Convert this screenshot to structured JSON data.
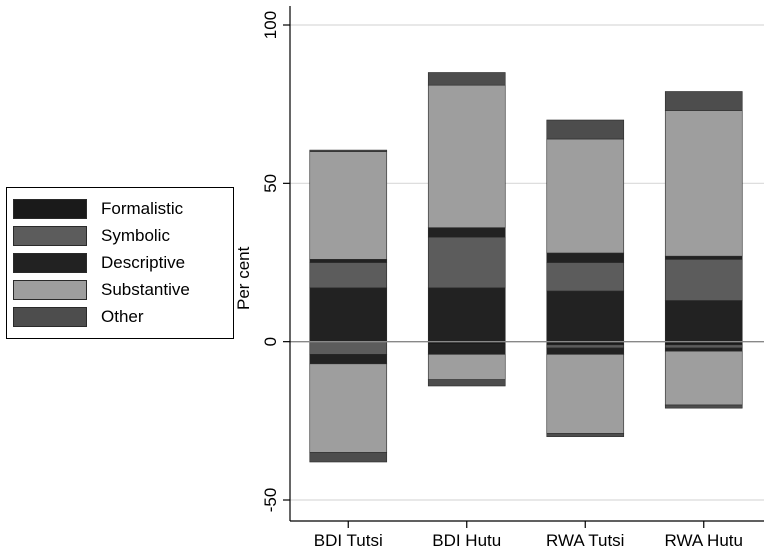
{
  "chart_data": {
    "type": "bar",
    "stacked": "diverging",
    "title": "",
    "xlabel": "",
    "ylabel": "Per cent",
    "ylim": [
      -55,
      100
    ],
    "yticks": [
      100,
      50,
      0,
      -50
    ],
    "ytick_labels": [
      "100",
      "50",
      "0",
      "-50"
    ],
    "grid": true,
    "categories": [
      "BDI Tutsi",
      "BDI Hutu",
      "RWA Tutsi",
      "RWA Hutu"
    ],
    "series": [
      {
        "name": "Formalistic",
        "color": "#1a1a1a",
        "positive": [
          0,
          0,
          0,
          0
        ],
        "negative": [
          0,
          1,
          1,
          1
        ]
      },
      {
        "name": "Symbolic",
        "color": "#5c5c5c",
        "positive": [
          0,
          0,
          0,
          0
        ],
        "negative": [
          4,
          0,
          1,
          1
        ]
      },
      {
        "name": "Descriptive",
        "color": "#222222",
        "positive": [
          17,
          17,
          16,
          13
        ],
        "negative": [
          3,
          3,
          2,
          1
        ]
      },
      {
        "name": "Substantive",
        "color": "#9e9e9e",
        "positive": [
          0,
          0,
          0,
          0
        ],
        "negative": [
          28,
          8,
          25,
          17
        ]
      },
      {
        "name": "Other",
        "color": "#4d4d4d",
        "positive": [
          0,
          0,
          0,
          0
        ],
        "negative": [
          3,
          2,
          1,
          1
        ]
      },
      {
        "name": "Symbolic",
        "color": "#5c5c5c",
        "positive": [
          8,
          16,
          9,
          13
        ],
        "negative": [
          0,
          0,
          0,
          0
        ]
      },
      {
        "name": "Descriptive",
        "color": "#222222",
        "positive": [
          1,
          3,
          3,
          1
        ],
        "negative": [
          0,
          0,
          0,
          0
        ]
      },
      {
        "name": "Substantive",
        "color": "#9e9e9e",
        "positive": [
          34,
          45,
          36,
          46
        ],
        "negative": [
          0,
          0,
          0,
          0
        ]
      },
      {
        "name": "Other",
        "color": "#4d4d4d",
        "positive": [
          0.5,
          4,
          6,
          6
        ],
        "negative": [
          0,
          0,
          0,
          0
        ]
      }
    ],
    "legend": {
      "position": "left",
      "entries": [
        {
          "label": "Formalistic",
          "color": "#1a1a1a"
        },
        {
          "label": "Symbolic",
          "color": "#5c5c5c"
        },
        {
          "label": "Descriptive",
          "color": "#222222"
        },
        {
          "label": "Substantive",
          "color": "#9e9e9e"
        },
        {
          "label": "Other",
          "color": "#4d4d4d"
        }
      ]
    },
    "colors": {
      "grid": "#d9d9d9",
      "zero_line": "#888888",
      "axis": "#000000"
    }
  }
}
